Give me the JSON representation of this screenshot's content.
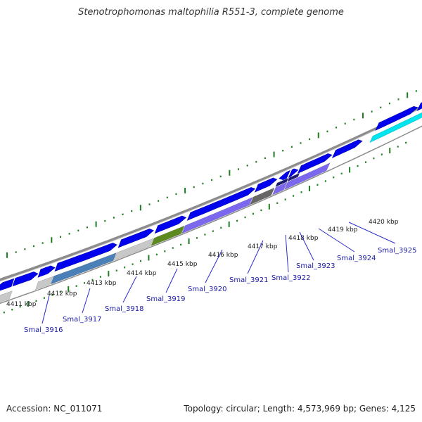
{
  "title": "Stenotrophomonas maltophilia R551-3, complete genome",
  "footer": {
    "accession": "Accession: NC_011071",
    "summary": "Topology: circular; Length: 4,573,969 bp; Genes: 4,125"
  },
  "colors": {
    "background": "#ffffff",
    "backbone": "#8c8c8c",
    "forward_gene": "#0000ee",
    "tick": "#1e7d1e",
    "label_line": "#2b2bcf",
    "label_text": "#1a1aa6"
  },
  "kbp_labels": [
    "4411 kbp",
    "4412 kbp",
    "4413 kbp",
    "4414 kbp",
    "4415 kbp",
    "4416 kbp",
    "4417 kbp",
    "4418 kbp",
    "4419 kbp",
    "4420 kbp"
  ],
  "gene_labels": [
    "Smal_3916",
    "Smal_3917",
    "Smal_3918",
    "Smal_3919",
    "Smal_3920",
    "Smal_3921",
    "Smal_3922",
    "Smal_3923",
    "Smal_3924",
    "Smal_3925"
  ],
  "cog_colors": [
    "#4a7fb8",
    "#5c8a1e",
    "#7b68ee",
    "#666666",
    "#9a9a9a",
    "#c8c8c8",
    "#00e5ee",
    "#1a1a6e"
  ]
}
